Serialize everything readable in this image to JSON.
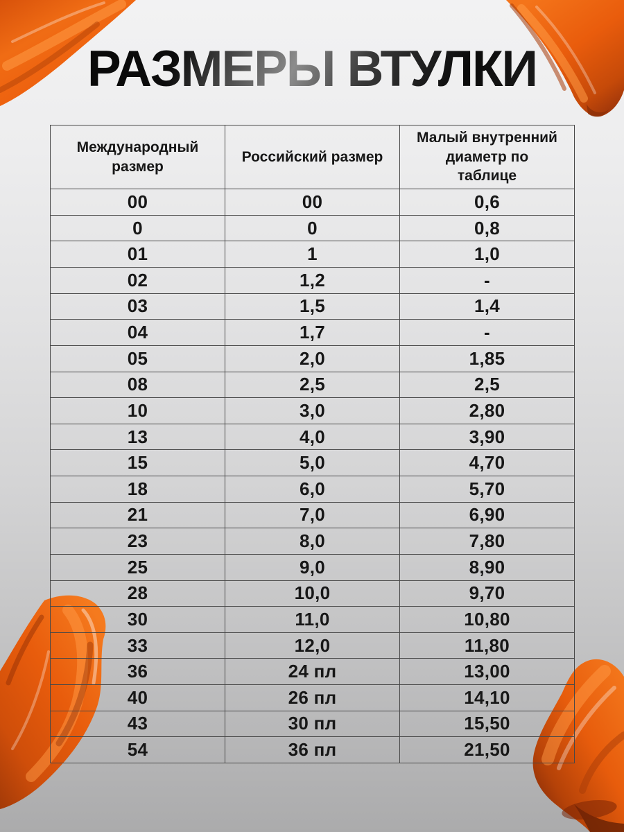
{
  "page": {
    "title": "РАЗМЕРЫ ВТУЛКИ"
  },
  "colors": {
    "paint_orange": "#ee5f0e",
    "paint_orange_light": "#ff9a45",
    "paint_orange_dark": "#a83b08",
    "paint_orange_deep": "#64200a",
    "table_border": "#484848",
    "text": "#171717",
    "background_top": "#f2f2f3",
    "background_bottom": "#ababac"
  },
  "table": {
    "headers": [
      "Международный размер",
      "Российский размер",
      "Малый внутренний диаметр по таблице"
    ],
    "rows": [
      [
        "00",
        "00",
        "0,6"
      ],
      [
        "0",
        "0",
        "0,8"
      ],
      [
        "01",
        "1",
        "1,0"
      ],
      [
        "02",
        "1,2",
        "-"
      ],
      [
        "03",
        "1,5",
        "1,4"
      ],
      [
        "04",
        "1,7",
        "-"
      ],
      [
        "05",
        "2,0",
        "1,85"
      ],
      [
        "08",
        "2,5",
        "2,5"
      ],
      [
        "10",
        "3,0",
        "2,80"
      ],
      [
        "13",
        "4,0",
        "3,90"
      ],
      [
        "15",
        "5,0",
        "4,70"
      ],
      [
        "18",
        "6,0",
        "5,70"
      ],
      [
        "21",
        "7,0",
        "6,90"
      ],
      [
        "23",
        "8,0",
        "7,80"
      ],
      [
        "25",
        "9,0",
        "8,90"
      ],
      [
        "28",
        "10,0",
        "9,70"
      ],
      [
        "30",
        "11,0",
        "10,80"
      ],
      [
        "33",
        "12,0",
        "11,80"
      ],
      [
        "36",
        "24 пл",
        "13,00"
      ],
      [
        "40",
        "26 пл",
        "14,10"
      ],
      [
        "43",
        "30 пл",
        "15,50"
      ],
      [
        "54",
        "36 пл",
        "21,50"
      ]
    ]
  }
}
